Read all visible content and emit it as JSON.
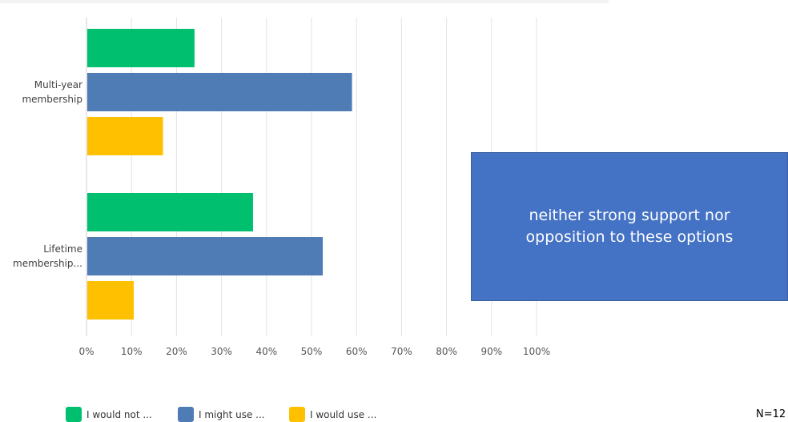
{
  "chart_data": {
    "type": "bar",
    "orientation": "horizontal",
    "categories": [
      "Multi-year membership",
      "Lifetime membership..."
    ],
    "category_lines": [
      [
        "Multi-year",
        "membership"
      ],
      [
        "Lifetime",
        "membership..."
      ]
    ],
    "series": [
      {
        "name": "I would not ...",
        "color": "#00bf6f",
        "values": [
          24,
          37
        ]
      },
      {
        "name": "I might use ...",
        "color": "#507cb6",
        "values": [
          59,
          52.5
        ]
      },
      {
        "name": "I would use ...",
        "color": "#ffc000",
        "values": [
          17,
          10.5
        ]
      }
    ],
    "xlim": [
      0,
      100
    ],
    "x_ticks": [
      "0%",
      "10%",
      "20%",
      "30%",
      "40%",
      "50%",
      "60%",
      "70%",
      "80%",
      "90%",
      "100%"
    ],
    "grid": true,
    "legend_position": "bottom-left"
  },
  "callout": {
    "text": "neither strong support nor opposition to these options"
  },
  "footer": {
    "n_label": "N=12"
  },
  "colors": {
    "grid": "#e3e3e3",
    "axis": "#cfcfcf",
    "tick_text": "#555555",
    "category_text": "#404040",
    "callout_bg": "#4472c4"
  }
}
